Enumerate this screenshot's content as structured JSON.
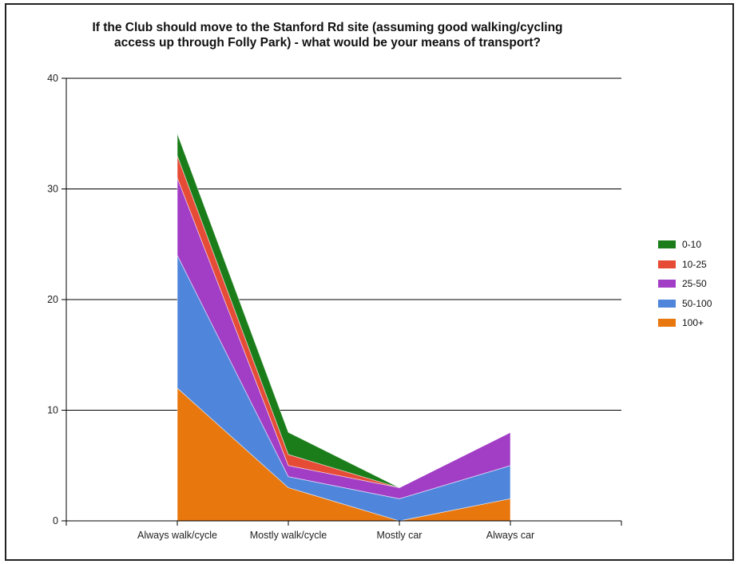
{
  "chart_data": {
    "type": "area",
    "stacked": true,
    "title_lines": [
      "If the Club should move to the Stanford Rd site (assuming good walking/cycling",
      "access up through Folly Park) - what would be your means of transport?"
    ],
    "categories": [
      "Always walk/cycle",
      "Mostly walk/cycle",
      "Mostly car",
      "Always car"
    ],
    "ylim": [
      0,
      40
    ],
    "yticks": [
      "0",
      "10",
      "20",
      "30",
      "40"
    ],
    "grid": true,
    "legend_position": "right",
    "series": [
      {
        "name": "100+",
        "color": "#e8770e",
        "values": [
          12,
          3,
          0,
          2
        ]
      },
      {
        "name": "50-100",
        "color": "#4f86db",
        "values": [
          12,
          1,
          2,
          3
        ]
      },
      {
        "name": "25-50",
        "color": "#a23dc6",
        "values": [
          7,
          1,
          1,
          3
        ]
      },
      {
        "name": "10-25",
        "color": "#e64b36",
        "values": [
          2,
          1,
          0,
          0
        ]
      },
      {
        "name": "0-10",
        "color": "#1a7d1a",
        "values": [
          2,
          2,
          0,
          0
        ]
      }
    ],
    "legend_order": [
      "0-10",
      "10-25",
      "25-50",
      "50-100",
      "100+"
    ]
  }
}
